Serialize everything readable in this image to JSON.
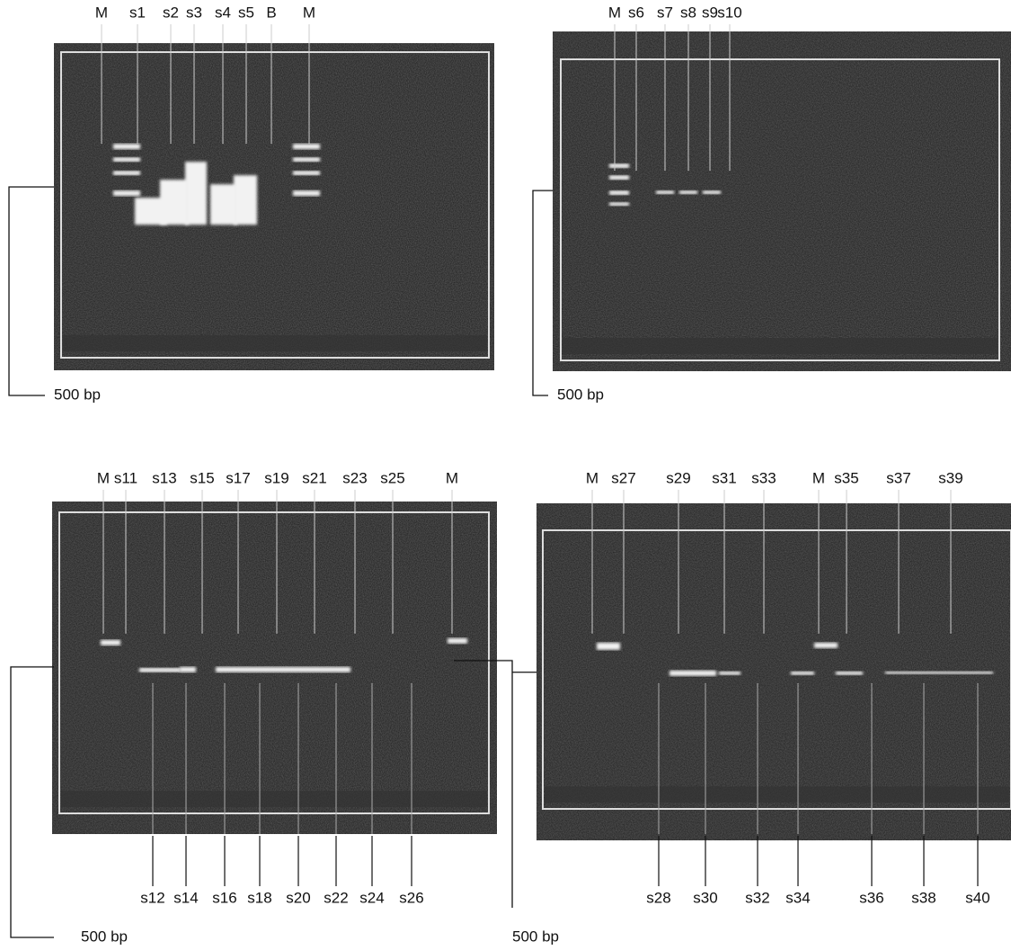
{
  "panels": [
    {
      "top_labels": [
        "M",
        "s1",
        "s2",
        "s3",
        "s4",
        "s5",
        "B",
        "M"
      ],
      "bottom_labels": [],
      "marker_label": "500 bp"
    },
    {
      "top_labels": [
        "M",
        "s6",
        "s7",
        "s8",
        "s9",
        "s10"
      ],
      "bottom_labels": [],
      "marker_label": "500 bp"
    },
    {
      "top_labels": [
        "M",
        "s11",
        "s13",
        "s15",
        "s17",
        "s19",
        "s21",
        "s23",
        "s25",
        "M"
      ],
      "bottom_labels": [
        "s12",
        "s14",
        "s16",
        "s18",
        "s20",
        "s22",
        "s24",
        "s26"
      ],
      "marker_label": "500 bp"
    },
    {
      "top_labels": [
        "M",
        "s27",
        "s29",
        "s31",
        "s33",
        "M",
        "s35",
        "s37",
        "s39"
      ],
      "bottom_labels": [
        "s28",
        "s30",
        "s32",
        "s34",
        "s36",
        "s38",
        "s40"
      ],
      "marker_label": "500 bp"
    }
  ]
}
